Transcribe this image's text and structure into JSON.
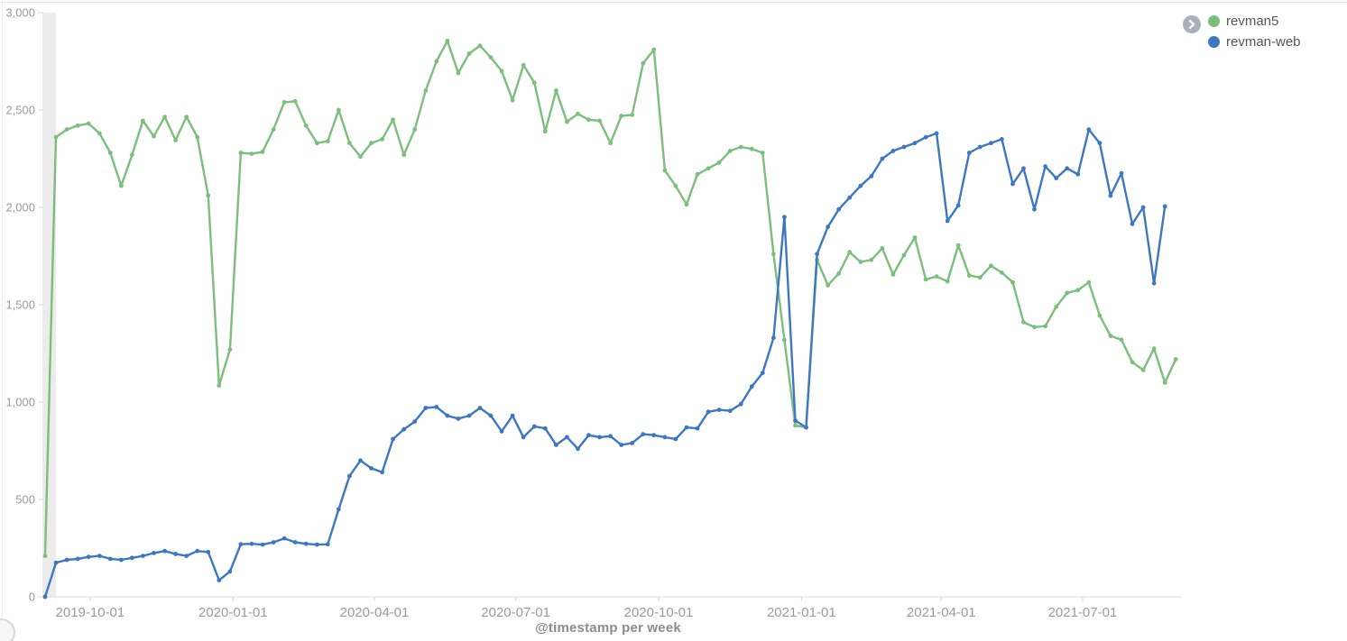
{
  "page": {
    "background_color": "#ffffff"
  },
  "legend": {
    "toggle_icon": "chevron-right-icon",
    "items": [
      {
        "label": "revman5",
        "color": "#7cbe7c"
      },
      {
        "label": "revman-web",
        "color": "#3d77c2"
      }
    ]
  },
  "chart_data": {
    "type": "line",
    "title": "",
    "xlabel": "@timestamp per week",
    "ylabel": "",
    "ylim": [
      0,
      3000
    ],
    "grid": false,
    "legend_position": "top-right",
    "marker": "circle",
    "axis_color": "#d8d8db",
    "tick_label_color": "#9a9ba1",
    "axis_title_color": "#8c8c90",
    "partial_bucket_band": {
      "from_index": 0,
      "to_index": 1,
      "color": "#ececec"
    },
    "y_ticks": [
      "0",
      "500",
      "1,000",
      "1,500",
      "2,000",
      "2,500",
      "3,000"
    ],
    "y_tick_step": 500,
    "x_ticks": [
      {
        "label": "2019-10-01",
        "index": 4.14
      },
      {
        "label": "2020-01-01",
        "index": 17.29
      },
      {
        "label": "2020-04-01",
        "index": 30.29
      },
      {
        "label": "2020-07-01",
        "index": 43.29
      },
      {
        "label": "2020-10-01",
        "index": 56.43
      },
      {
        "label": "2021-01-01",
        "index": 69.57
      },
      {
        "label": "2021-04-01",
        "index": 82.43
      },
      {
        "label": "2021-07-01",
        "index": 95.43
      }
    ],
    "series": [
      {
        "name": "revman5",
        "color": "#7cbe7c",
        "values": [
          210,
          2360,
          2400,
          2420,
          2430,
          2380,
          2280,
          2110,
          2270,
          2445,
          2365,
          2465,
          2345,
          2465,
          2360,
          2060,
          1085,
          1270,
          2280,
          2275,
          2285,
          2400,
          2540,
          2545,
          2420,
          2330,
          2340,
          2500,
          2330,
          2260,
          2330,
          2350,
          2450,
          2270,
          2400,
          2600,
          2750,
          2855,
          2690,
          2790,
          2830,
          2770,
          2700,
          2550,
          2730,
          2640,
          2390,
          2600,
          2440,
          2480,
          2450,
          2445,
          2330,
          2470,
          2475,
          2740,
          2810,
          2190,
          2110,
          2015,
          2170,
          2200,
          2230,
          2290,
          2310,
          2300,
          2280,
          1760,
          1320,
          880,
          870,
          1730,
          1600,
          1660,
          1770,
          1720,
          1730,
          1790,
          1655,
          1755,
          1845,
          1630,
          1645,
          1620,
          1805,
          1650,
          1640,
          1700,
          1665,
          1615,
          1410,
          1385,
          1390,
          1490,
          1560,
          1575,
          1615,
          1445,
          1340,
          1320,
          1205,
          1165,
          1275,
          1100,
          1220
        ]
      },
      {
        "name": "revman-web",
        "color": "#3d77c2",
        "values": [
          0,
          175,
          190,
          195,
          205,
          210,
          195,
          190,
          200,
          210,
          225,
          235,
          220,
          210,
          235,
          230,
          85,
          130,
          270,
          272,
          268,
          280,
          300,
          280,
          272,
          268,
          270,
          450,
          620,
          700,
          660,
          640,
          810,
          860,
          900,
          970,
          975,
          930,
          915,
          930,
          970,
          930,
          850,
          930,
          820,
          875,
          865,
          780,
          820,
          760,
          830,
          820,
          825,
          780,
          790,
          835,
          830,
          820,
          810,
          870,
          865,
          950,
          960,
          955,
          990,
          1080,
          1150,
          1330,
          1950,
          905,
          870,
          1760,
          1900,
          1990,
          2050,
          2110,
          2160,
          2250,
          2290,
          2310,
          2330,
          2360,
          2380,
          1930,
          2010,
          2280,
          2310,
          2330,
          2350,
          2120,
          2200,
          1990,
          2210,
          2150,
          2200,
          2170,
          2400,
          2330,
          2060,
          2175,
          1915,
          2000,
          1610,
          2005
        ]
      }
    ]
  }
}
